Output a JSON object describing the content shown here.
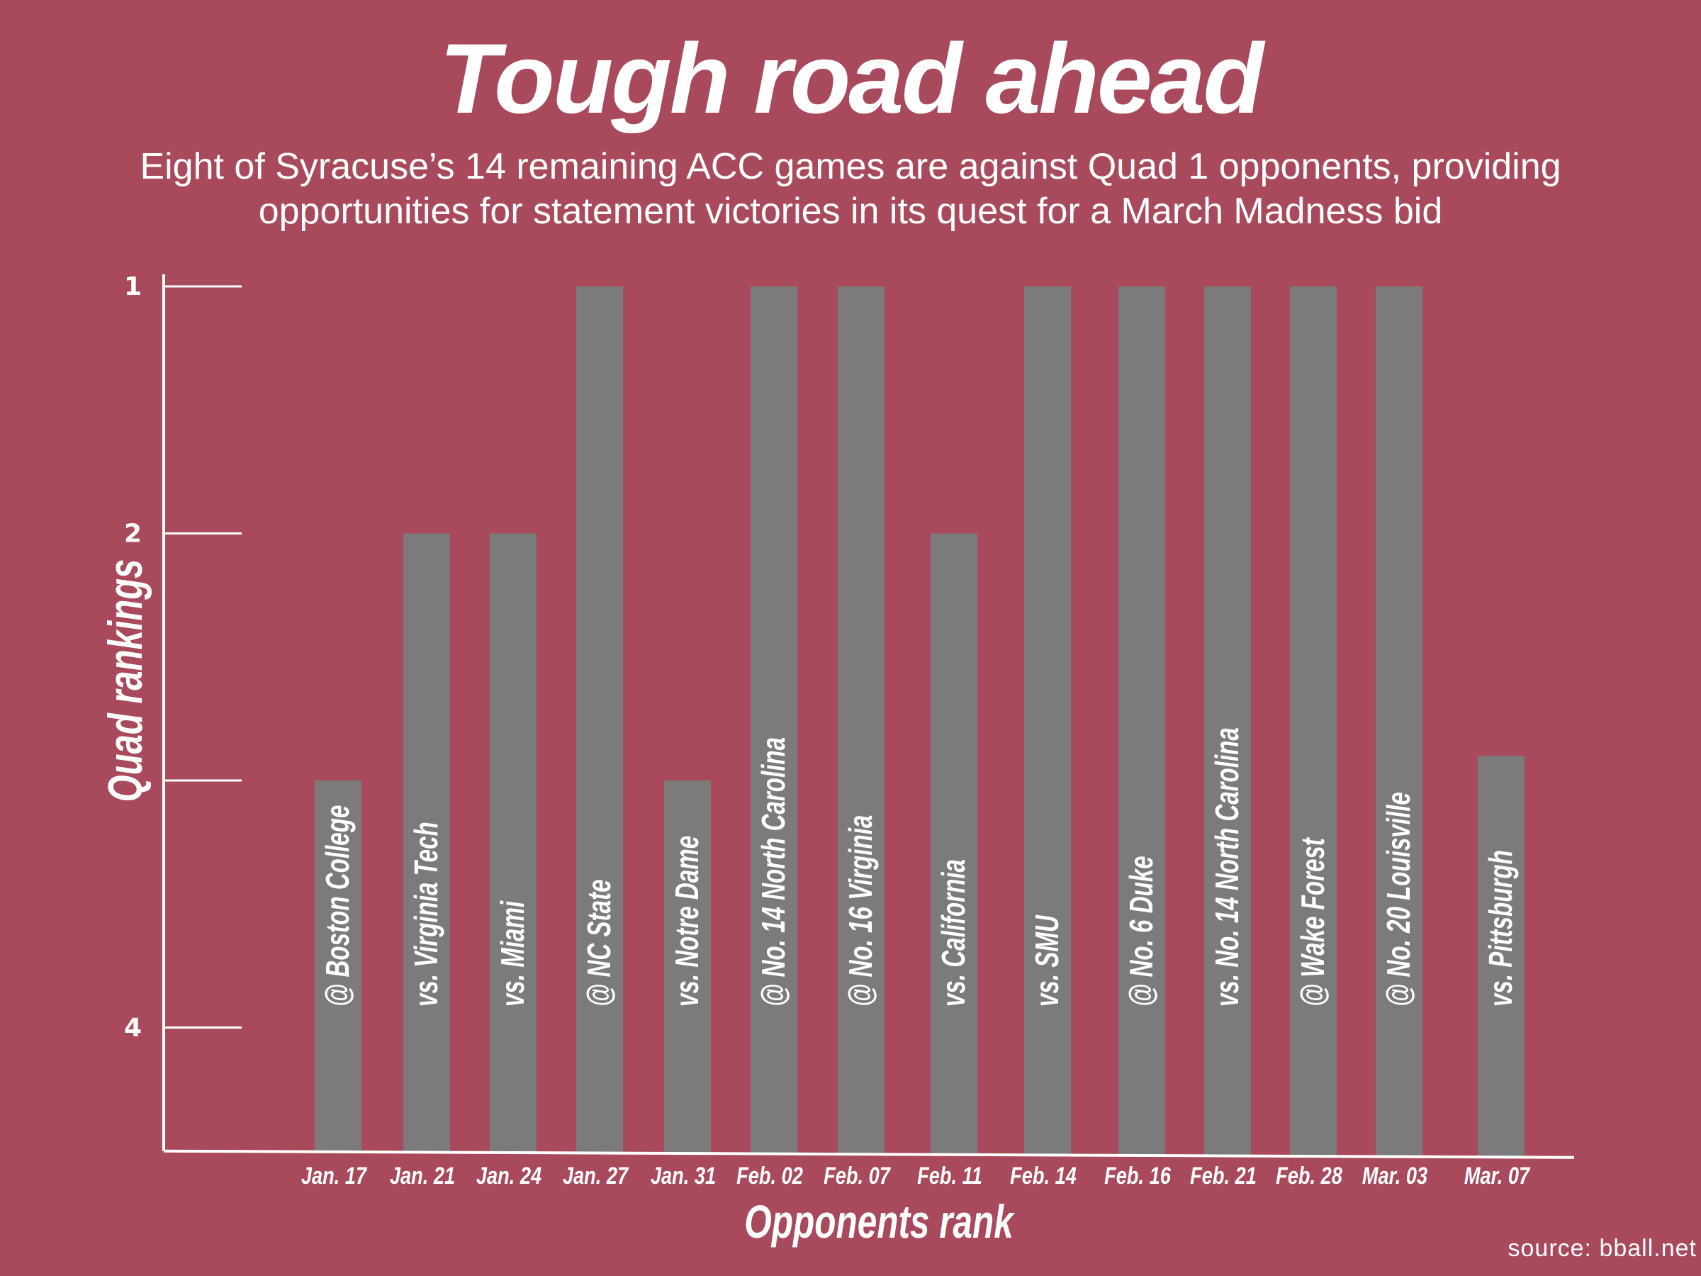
{
  "colors": {
    "background": "#a84a5c",
    "bar": "#7b7b7b",
    "axis": "#ffffff"
  },
  "chart_data": {
    "type": "bar",
    "title": "Tough road ahead",
    "subtitle": "Eight of Syracuse’s 14 remaining ACC games are against Quad 1 opponents, providing opportunities for statement victories in its quest for a March Madness bid",
    "xlabel": "Opponents rank",
    "ylabel": "Quad rankings",
    "y_inverted": true,
    "ylim": [
      4.5,
      1
    ],
    "yticks": [
      1,
      2,
      3,
      4
    ],
    "ytick_labels": [
      "1",
      "2",
      "",
      "4"
    ],
    "grid": false,
    "categories": [
      "Jan. 17",
      "Jan. 21",
      "Jan. 24",
      "Jan. 27",
      "Jan. 31",
      "Feb. 02",
      "Feb. 07",
      "Feb. 11",
      "Feb. 14",
      "Feb. 16",
      "Feb. 21",
      "Feb. 28",
      "Mar. 03",
      "Mar. 07"
    ],
    "bar_labels": [
      "@ Boston College",
      "vs. Virginia Tech",
      "vs. Miami",
      "@ NC State",
      "vs. Notre Dame",
      "@ No. 14 North Carolina",
      "@ No. 16 Virginia",
      "vs. California",
      "vs. SMU",
      "@ No. 6 Duke",
      "vs. No. 14 North Carolina",
      "@ Wake Forest",
      "@ No. 20 Louisville",
      "vs. Pittsburgh"
    ],
    "values": [
      3,
      2,
      2,
      1,
      3,
      1,
      1,
      2,
      1,
      1,
      1,
      1,
      1,
      2.9
    ],
    "source": "source: bball.net"
  }
}
